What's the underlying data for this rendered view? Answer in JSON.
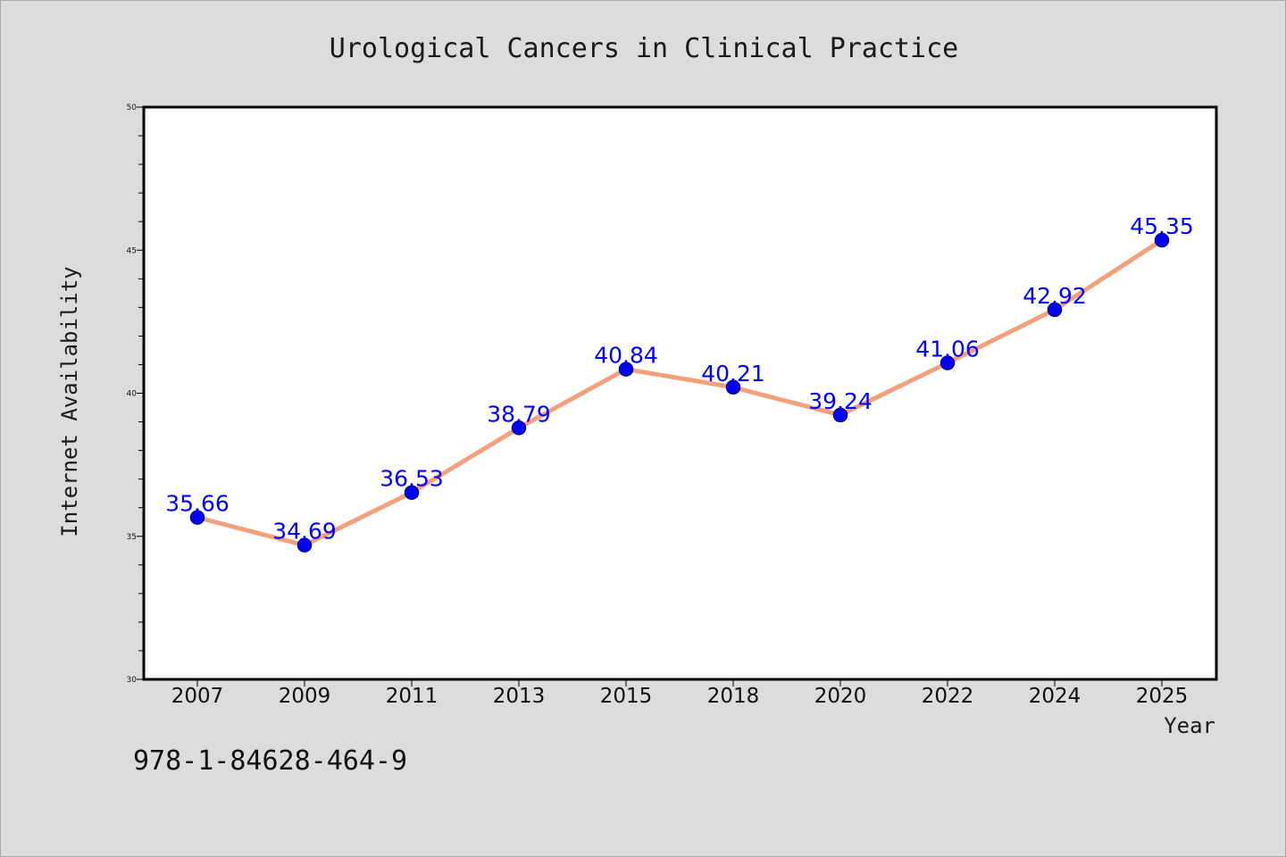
{
  "chart_data": {
    "type": "line",
    "title": "Urological Cancers in Clinical Practice",
    "xlabel": "Year",
    "ylabel": "Internet Availability",
    "categories": [
      "2007",
      "2009",
      "2011",
      "2013",
      "2015",
      "2018",
      "2020",
      "2022",
      "2024",
      "2025"
    ],
    "series": [
      {
        "values": [
          35.66,
          34.69,
          36.53,
          38.79,
          40.84,
          40.21,
          39.24,
          41.06,
          42.92,
          45.35
        ]
      }
    ],
    "data_labels": [
      "35.66",
      "34.69",
      "36.53",
      "38.79",
      "40.84",
      "40.21",
      "39.24",
      "41.06",
      "42.92",
      "45.35"
    ],
    "ylim": [
      30,
      50
    ],
    "y_ticks": [
      "30",
      "35",
      "40",
      "45",
      "50"
    ],
    "grid": false,
    "colors": {
      "line": "#f4a07c",
      "marker": "#0000ff",
      "marker_edge": "#00008b",
      "data_label": "#0000ff",
      "plot_background": "#ffffff",
      "page_background": "#dcdcdc"
    }
  },
  "footer": {
    "isbn": "978-1-84628-464-9"
  }
}
